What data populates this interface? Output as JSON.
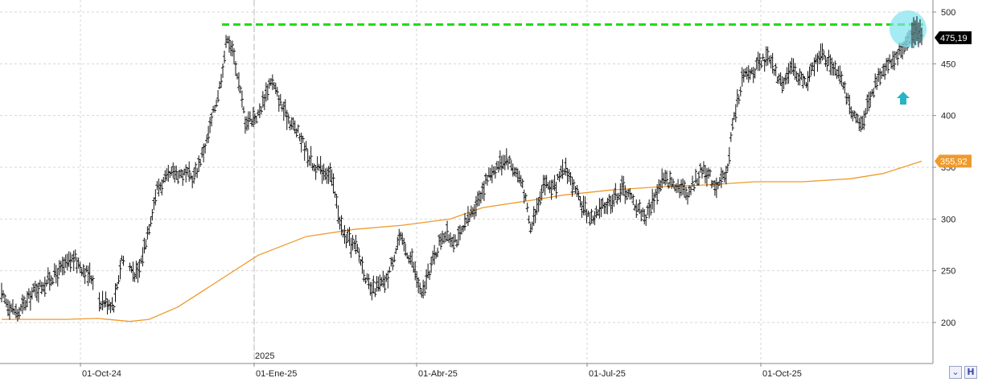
{
  "chart_data": {
    "type": "bar",
    "subtype": "ohlc",
    "ylim": [
      160,
      505
    ],
    "y_ticks": [
      "200",
      "250",
      "300",
      "350",
      "400",
      "450",
      "500"
    ],
    "x_tick_labels": [
      "01-Oct-24",
      "01-Ene-25",
      "01-Abr-25",
      "01-Jul-25",
      "01-Oct-25"
    ],
    "year_label": "2025",
    "grid": true,
    "price_anchors": [
      [
        0,
        225
      ],
      [
        10,
        208
      ],
      [
        20,
        230
      ],
      [
        35,
        248
      ],
      [
        45,
        262
      ],
      [
        52,
        250
      ],
      [
        58,
        240
      ],
      [
        60,
        222
      ],
      [
        70,
        218
      ],
      [
        75,
        262
      ],
      [
        85,
        245
      ],
      [
        90,
        280
      ],
      [
        97,
        330
      ],
      [
        108,
        345
      ],
      [
        120,
        340
      ],
      [
        128,
        375
      ],
      [
        136,
        428
      ],
      [
        141,
        478
      ],
      [
        146,
        450
      ],
      [
        152,
        395
      ],
      [
        160,
        400
      ],
      [
        168,
        435
      ],
      [
        176,
        405
      ],
      [
        186,
        380
      ],
      [
        195,
        350
      ],
      [
        205,
        345
      ],
      [
        213,
        285
      ],
      [
        222,
        270
      ],
      [
        230,
        230
      ],
      [
        240,
        240
      ],
      [
        248,
        282
      ],
      [
        256,
        260
      ],
      [
        262,
        225
      ],
      [
        268,
        255
      ],
      [
        275,
        285
      ],
      [
        285,
        280
      ],
      [
        295,
        312
      ],
      [
        305,
        345
      ],
      [
        315,
        360
      ],
      [
        325,
        335
      ],
      [
        330,
        290
      ],
      [
        338,
        335
      ],
      [
        345,
        330
      ],
      [
        352,
        350
      ],
      [
        360,
        318
      ],
      [
        368,
        300
      ],
      [
        378,
        315
      ],
      [
        388,
        330
      ],
      [
        395,
        315
      ],
      [
        402,
        302
      ],
      [
        412,
        338
      ],
      [
        420,
        335
      ],
      [
        428,
        325
      ],
      [
        438,
        350
      ],
      [
        445,
        333
      ],
      [
        452,
        340
      ],
      [
        456,
        390
      ],
      [
        462,
        435
      ],
      [
        470,
        445
      ],
      [
        478,
        455
      ],
      [
        486,
        432
      ],
      [
        494,
        445
      ],
      [
        502,
        430
      ],
      [
        510,
        460
      ],
      [
        518,
        450
      ],
      [
        524,
        440
      ],
      [
        530,
        400
      ],
      [
        536,
        390
      ],
      [
        542,
        420
      ],
      [
        550,
        445
      ],
      [
        556,
        455
      ],
      [
        562,
        465
      ],
      [
        568,
        478
      ],
      [
        574,
        478
      ]
    ],
    "moving_average": {
      "color": "#ef9a2c",
      "points": [
        [
          0,
          203
        ],
        [
          40,
          203
        ],
        [
          60,
          204
        ],
        [
          80,
          201
        ],
        [
          92,
          203
        ],
        [
          110,
          215
        ],
        [
          130,
          235
        ],
        [
          160,
          265
        ],
        [
          190,
          283
        ],
        [
          220,
          290
        ],
        [
          250,
          294
        ],
        [
          280,
          300
        ],
        [
          300,
          311
        ],
        [
          330,
          318
        ],
        [
          350,
          323
        ],
        [
          380,
          328
        ],
        [
          410,
          331
        ],
        [
          440,
          333
        ],
        [
          470,
          336
        ],
        [
          500,
          336
        ],
        [
          530,
          339
        ],
        [
          550,
          344
        ],
        [
          574,
          355.92
        ]
      ]
    },
    "resistance": {
      "value": 488,
      "color": "#22dd00"
    },
    "last_price": {
      "label": "475,19",
      "value": 475.19,
      "color": "#000000"
    },
    "ma_value": {
      "label": "355,92",
      "value": 355.92,
      "color": "#ef9a2c"
    },
    "highlight_circle_color": "#7fe3ee",
    "arrow": {
      "direction": "up",
      "color": "#29b3c4"
    }
  },
  "icons": [
    "chevron-down-icon",
    "h-icon"
  ]
}
